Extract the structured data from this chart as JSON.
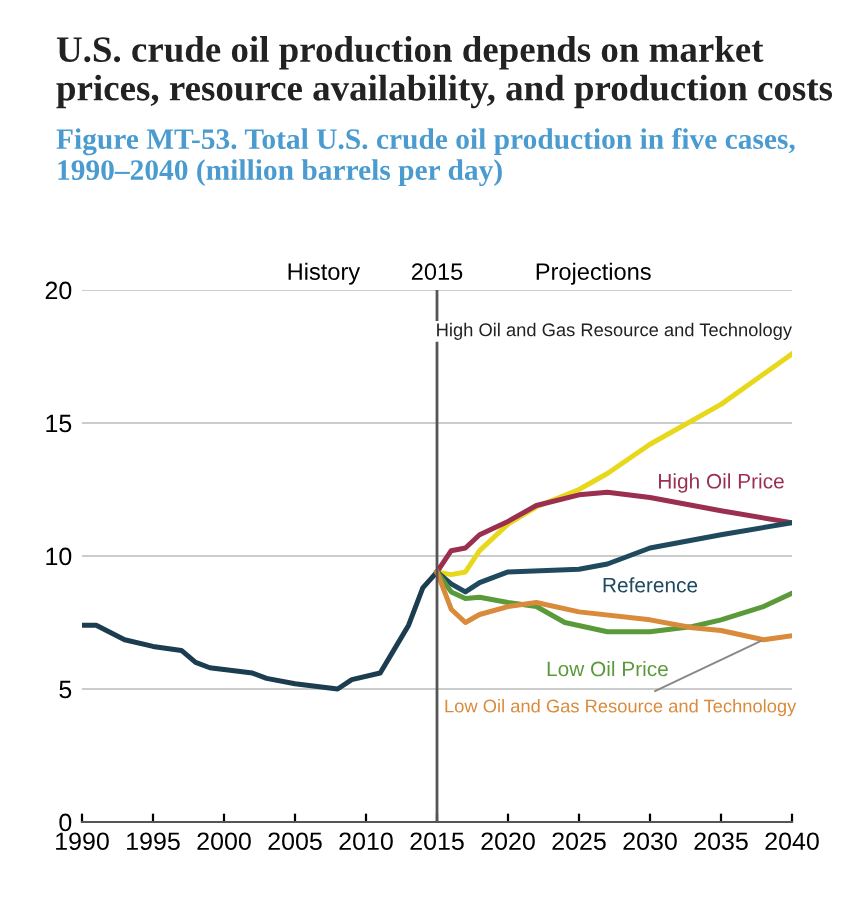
{
  "chart_data": {
    "type": "line",
    "title": "U.S. crude oil production depends on market prices, resource availability, and production costs",
    "subtitle": "Figure MT-53. Total U.S. crude oil production in five cases, 1990–2040 (million barrels per day)",
    "series": [
      {
        "color": "#1c3d4f",
        "x": [
          1990,
          1991,
          1993,
          1995,
          1997,
          1998,
          1999,
          2002,
          2003,
          2005,
          2008,
          2009,
          2011,
          2012,
          2013,
          2014,
          2015
        ],
        "values": [
          7.4,
          7.4,
          6.85,
          6.6,
          6.45,
          6.0,
          5.8,
          5.6,
          5.4,
          5.2,
          5.0,
          5.35,
          5.6,
          6.5,
          7.4,
          8.8,
          9.4
        ]
      },
      {
        "name": "High Oil and Gas Resource and Technology",
        "color": "#e8d81c",
        "x": [
          2015,
          2016,
          2017,
          2018,
          2020,
          2022,
          2025,
          2027,
          2030,
          2035,
          2040
        ],
        "values": [
          9.4,
          9.3,
          9.4,
          10.2,
          11.2,
          11.85,
          12.5,
          13.1,
          14.2,
          15.7,
          17.6
        ]
      },
      {
        "name": "High Oil Price",
        "color": "#9b2f4f",
        "x": [
          2015,
          2016,
          2017,
          2018,
          2020,
          2022,
          2025,
          2027,
          2030,
          2035,
          2040
        ],
        "values": [
          9.4,
          10.2,
          10.3,
          10.8,
          11.3,
          11.9,
          12.3,
          12.4,
          12.2,
          11.7,
          11.25
        ]
      },
      {
        "name": "Reference",
        "color": "#1f4a5e",
        "x": [
          2015,
          2016,
          2017,
          2018,
          2020,
          2025,
          2027,
          2030,
          2035,
          2040
        ],
        "values": [
          9.4,
          8.95,
          8.65,
          9.0,
          9.4,
          9.5,
          9.7,
          10.3,
          10.8,
          11.25
        ]
      },
      {
        "name": "Low Oil Price",
        "color": "#5a9a3a",
        "x": [
          2015,
          2016,
          2017,
          2018,
          2020,
          2022,
          2024,
          2027,
          2030,
          2033,
          2035,
          2038,
          2040
        ],
        "values": [
          9.4,
          8.65,
          8.4,
          8.45,
          8.25,
          8.1,
          7.5,
          7.15,
          7.15,
          7.35,
          7.6,
          8.1,
          8.6
        ]
      },
      {
        "name": "Low Oil and Gas Resource and Technology",
        "color": "#d98a3a",
        "x": [
          2015,
          2016,
          2017,
          2018,
          2020,
          2022,
          2025,
          2030,
          2033,
          2035,
          2038,
          2040
        ],
        "values": [
          9.4,
          8.0,
          7.5,
          7.8,
          8.1,
          8.25,
          7.9,
          7.6,
          7.3,
          7.2,
          6.85,
          7.0
        ]
      }
    ],
    "xlim": [
      1990,
      2040
    ],
    "xticks": [
      1990,
      1995,
      2000,
      2005,
      2010,
      2015,
      2020,
      2025,
      2030,
      2035,
      2040
    ],
    "ylim": [
      0,
      20
    ],
    "yticks": [
      0,
      5,
      10,
      15,
      20
    ],
    "grid": "y",
    "legend": false,
    "marker": "none",
    "line_style": "solid",
    "ref_lines": [
      {
        "axis": "x",
        "value": 2015,
        "label": "2015",
        "color": "#555555"
      }
    ],
    "annotations": [
      "History",
      "Projections"
    ]
  }
}
